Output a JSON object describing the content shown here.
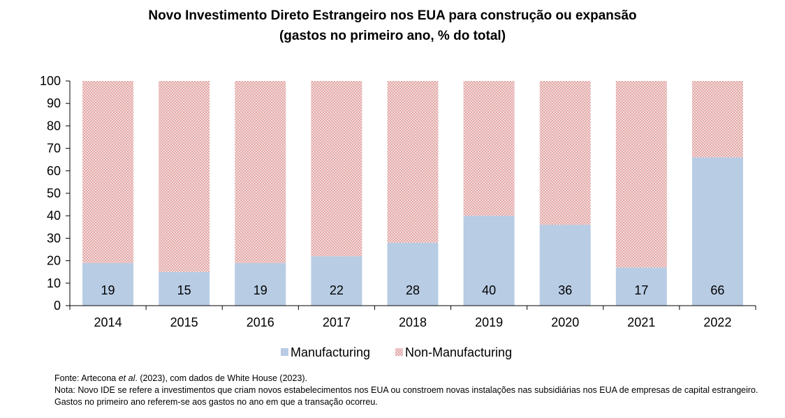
{
  "chart_data": {
    "type": "bar",
    "stacked": true,
    "percent_stacked": true,
    "title": "Novo Investimento Direto Estrangeiro nos EUA para construção ou expansão",
    "subtitle": "(gastos no primeiro ano, % do total)",
    "categories": [
      "2014",
      "2015",
      "2016",
      "2017",
      "2018",
      "2019",
      "2020",
      "2021",
      "2022"
    ],
    "series": [
      {
        "name": "Manufacturing",
        "values": [
          19,
          15,
          19,
          22,
          28,
          40,
          36,
          17,
          66
        ],
        "color": "#b8cce4",
        "data_labels": true
      },
      {
        "name": "Non-Manufacturing",
        "values": [
          81,
          85,
          81,
          78,
          72,
          60,
          64,
          83,
          34
        ],
        "color": "#e6b8b7",
        "pattern": "dotted",
        "data_labels": false
      }
    ],
    "ylim": [
      0,
      100
    ],
    "yticks": [
      0,
      10,
      20,
      30,
      40,
      50,
      60,
      70,
      80,
      90,
      100
    ],
    "grid": false,
    "legend": "bottom-center"
  },
  "footnotes": {
    "source_prefix": "Fonte: Artecona ",
    "source_italic": "et al",
    "source_suffix": ". (2023), com dados de White House (2023).",
    "note": "Nota: Novo IDE se refere a investimentos que criam novos estabelecimentos nos EUA ou constroem novas instalações nas subsidiárias nos EUA de empresas de capital estrangeiro. Gastos no primeiro ano referem-se aos gastos no ano em que a transação ocorreu."
  }
}
